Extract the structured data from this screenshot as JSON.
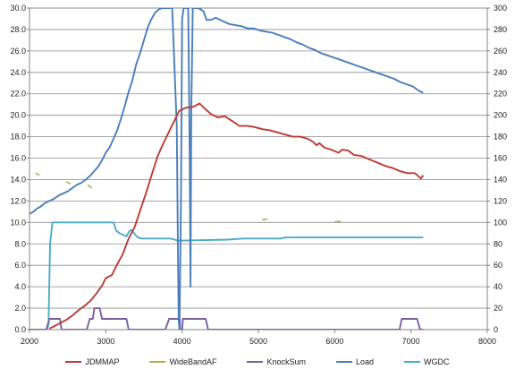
{
  "chart_data": {
    "type": "line",
    "x_axis": {
      "range": [
        2000,
        8000
      ],
      "ticks": [
        "2000",
        "3000",
        "4000",
        "5000",
        "6000",
        "7000",
        "8000"
      ],
      "tick_values": [
        2000,
        3000,
        4000,
        5000,
        6000,
        7000,
        8000
      ]
    },
    "y_left": {
      "range": [
        0,
        30
      ],
      "ticks": [
        "0.0",
        "2.0",
        "4.0",
        "6.0",
        "8.0",
        "10.0",
        "12.0",
        "14.0",
        "16.0",
        "18.0",
        "20.0",
        "22.0",
        "24.0",
        "26.0",
        "28.0",
        "30.0"
      ]
    },
    "y_right": {
      "range": [
        0,
        300
      ],
      "ticks": [
        "0",
        "20",
        "40",
        "60",
        "80",
        "100",
        "120",
        "140",
        "160",
        "180",
        "200",
        "220",
        "240",
        "260",
        "280",
        "300"
      ]
    },
    "grid": "horizontal",
    "legend_position": "bottom",
    "series": [
      {
        "name": "JDMMAP",
        "axis": "left",
        "color": "#be3a34",
        "style": "line",
        "points": [
          [
            2260,
            0.1
          ],
          [
            2320,
            0.3
          ],
          [
            2400,
            0.6
          ],
          [
            2480,
            0.9
          ],
          [
            2560,
            1.3
          ],
          [
            2640,
            1.8
          ],
          [
            2720,
            2.2
          ],
          [
            2800,
            2.7
          ],
          [
            2880,
            3.4
          ],
          [
            2950,
            4.1
          ],
          [
            3000,
            4.8
          ],
          [
            3080,
            5.1
          ],
          [
            3150,
            6.1
          ],
          [
            3220,
            7.0
          ],
          [
            3300,
            8.5
          ],
          [
            3380,
            9.6
          ],
          [
            3450,
            11.1
          ],
          [
            3530,
            12.8
          ],
          [
            3600,
            14.4
          ],
          [
            3680,
            16.2
          ],
          [
            3750,
            17.3
          ],
          [
            3830,
            18.5
          ],
          [
            3900,
            19.5
          ],
          [
            3960,
            20.4
          ],
          [
            4050,
            20.7
          ],
          [
            4150,
            20.8
          ],
          [
            4230,
            21.1
          ],
          [
            4300,
            20.6
          ],
          [
            4380,
            20.1
          ],
          [
            4470,
            19.8
          ],
          [
            4560,
            19.9
          ],
          [
            4650,
            19.5
          ],
          [
            4750,
            19.0
          ],
          [
            4850,
            19.0
          ],
          [
            4950,
            18.9
          ],
          [
            5050,
            18.7
          ],
          [
            5150,
            18.6
          ],
          [
            5250,
            18.4
          ],
          [
            5350,
            18.2
          ],
          [
            5450,
            18.0
          ],
          [
            5550,
            18.0
          ],
          [
            5650,
            17.8
          ],
          [
            5720,
            17.5
          ],
          [
            5760,
            17.2
          ],
          [
            5800,
            17.4
          ],
          [
            5860,
            17.0
          ],
          [
            5950,
            16.8
          ],
          [
            6050,
            16.5
          ],
          [
            6100,
            16.8
          ],
          [
            6180,
            16.7
          ],
          [
            6250,
            16.3
          ],
          [
            6350,
            16.2
          ],
          [
            6450,
            15.9
          ],
          [
            6550,
            15.6
          ],
          [
            6650,
            15.3
          ],
          [
            6750,
            15.1
          ],
          [
            6850,
            14.8
          ],
          [
            6950,
            14.6
          ],
          [
            7050,
            14.6
          ],
          [
            7100,
            14.3
          ],
          [
            7130,
            14.1
          ],
          [
            7160,
            14.4
          ]
        ]
      },
      {
        "name": "WideBandAF",
        "axis": "left",
        "color": "#98b954",
        "style": "segments",
        "segments": [
          [
            [
              2080,
              14.6
            ],
            [
              2130,
              14.4
            ]
          ],
          [
            [
              2480,
              13.8
            ],
            [
              2540,
              13.6
            ]
          ],
          [
            [
              2760,
              13.5
            ],
            [
              2820,
              13.2
            ]
          ],
          [
            [
              5050,
              10.25
            ],
            [
              5120,
              10.3
            ]
          ],
          [
            [
              6000,
              10.05
            ],
            [
              6080,
              10.1
            ]
          ]
        ]
      },
      {
        "name": "KnockSum",
        "axis": "right",
        "color": "#7d5fa0",
        "style": "line",
        "points": [
          [
            2000,
            0
          ],
          [
            2220,
            0
          ],
          [
            2260,
            10
          ],
          [
            2400,
            10
          ],
          [
            2420,
            0
          ],
          [
            2750,
            0
          ],
          [
            2790,
            10
          ],
          [
            2830,
            10
          ],
          [
            2850,
            20
          ],
          [
            2920,
            20
          ],
          [
            2950,
            10
          ],
          [
            3270,
            10
          ],
          [
            3300,
            0
          ],
          [
            3780,
            0
          ],
          [
            3830,
            10
          ],
          [
            3970,
            10
          ],
          [
            3975,
            0
          ],
          [
            4000,
            0
          ],
          [
            4010,
            10
          ],
          [
            4310,
            10
          ],
          [
            4340,
            0
          ],
          [
            6850,
            0
          ],
          [
            6880,
            10
          ],
          [
            7080,
            10
          ],
          [
            7120,
            0
          ],
          [
            7160,
            0
          ]
        ]
      },
      {
        "name": "Load",
        "axis": "right",
        "color": "#4a7ebb",
        "style": "line",
        "points": [
          [
            2000,
            108
          ],
          [
            2050,
            110
          ],
          [
            2100,
            113
          ],
          [
            2150,
            115
          ],
          [
            2200,
            118
          ],
          [
            2260,
            120
          ],
          [
            2320,
            122
          ],
          [
            2380,
            125
          ],
          [
            2440,
            127
          ],
          [
            2500,
            129
          ],
          [
            2560,
            132
          ],
          [
            2620,
            135
          ],
          [
            2680,
            137
          ],
          [
            2740,
            140
          ],
          [
            2800,
            144
          ],
          [
            2850,
            148
          ],
          [
            2900,
            152
          ],
          [
            2950,
            158
          ],
          [
            3000,
            165
          ],
          [
            3050,
            170
          ],
          [
            3100,
            178
          ],
          [
            3150,
            186
          ],
          [
            3200,
            197
          ],
          [
            3250,
            209
          ],
          [
            3300,
            222
          ],
          [
            3350,
            233
          ],
          [
            3400,
            248
          ],
          [
            3450,
            258
          ],
          [
            3500,
            270
          ],
          [
            3550,
            282
          ],
          [
            3600,
            290
          ],
          [
            3650,
            296
          ],
          [
            3700,
            299
          ],
          [
            3750,
            300
          ],
          [
            3800,
            300
          ],
          [
            3870,
            300
          ],
          [
            3930,
            190
          ],
          [
            3955,
            10
          ],
          [
            3965,
            0
          ],
          [
            3985,
            120
          ],
          [
            4000,
            290
          ],
          [
            4020,
            300
          ],
          [
            4080,
            300
          ],
          [
            4100,
            160
          ],
          [
            4110,
            40
          ],
          [
            4120,
            200
          ],
          [
            4140,
            300
          ],
          [
            4200,
            300
          ],
          [
            4240,
            299
          ],
          [
            4280,
            297
          ],
          [
            4320,
            289
          ],
          [
            4380,
            289
          ],
          [
            4440,
            291
          ],
          [
            4500,
            289
          ],
          [
            4560,
            287
          ],
          [
            4620,
            285
          ],
          [
            4700,
            284
          ],
          [
            4780,
            283
          ],
          [
            4860,
            281
          ],
          [
            4940,
            281
          ],
          [
            5020,
            279
          ],
          [
            5100,
            278
          ],
          [
            5180,
            277
          ],
          [
            5260,
            275
          ],
          [
            5340,
            273
          ],
          [
            5420,
            271
          ],
          [
            5500,
            268
          ],
          [
            5580,
            266
          ],
          [
            5660,
            263
          ],
          [
            5740,
            261
          ],
          [
            5820,
            258
          ],
          [
            5900,
            256
          ],
          [
            5980,
            254
          ],
          [
            6060,
            252
          ],
          [
            6140,
            250
          ],
          [
            6220,
            248
          ],
          [
            6300,
            246
          ],
          [
            6380,
            244
          ],
          [
            6460,
            242
          ],
          [
            6540,
            240
          ],
          [
            6620,
            238
          ],
          [
            6700,
            236
          ],
          [
            6780,
            234
          ],
          [
            6860,
            231
          ],
          [
            6940,
            229
          ],
          [
            7020,
            227
          ],
          [
            7100,
            223
          ],
          [
            7160,
            221
          ]
        ]
      },
      {
        "name": "WGDC",
        "axis": "right",
        "color": "#4bacc6",
        "style": "line",
        "points": [
          [
            2000,
            0
          ],
          [
            2230,
            0
          ],
          [
            2250,
            5
          ],
          [
            2270,
            80
          ],
          [
            2300,
            100
          ],
          [
            2400,
            100
          ],
          [
            3100,
            100
          ],
          [
            3140,
            92
          ],
          [
            3180,
            90
          ],
          [
            3240,
            88
          ],
          [
            3270,
            87
          ],
          [
            3310,
            92
          ],
          [
            3340,
            93
          ],
          [
            3380,
            89
          ],
          [
            3420,
            86
          ],
          [
            3470,
            85
          ],
          [
            3600,
            85
          ],
          [
            3850,
            85
          ],
          [
            3900,
            84
          ],
          [
            3950,
            83
          ],
          [
            4600,
            84
          ],
          [
            4800,
            85
          ],
          [
            5300,
            85
          ],
          [
            5350,
            86
          ],
          [
            7160,
            86
          ]
        ]
      }
    ]
  }
}
